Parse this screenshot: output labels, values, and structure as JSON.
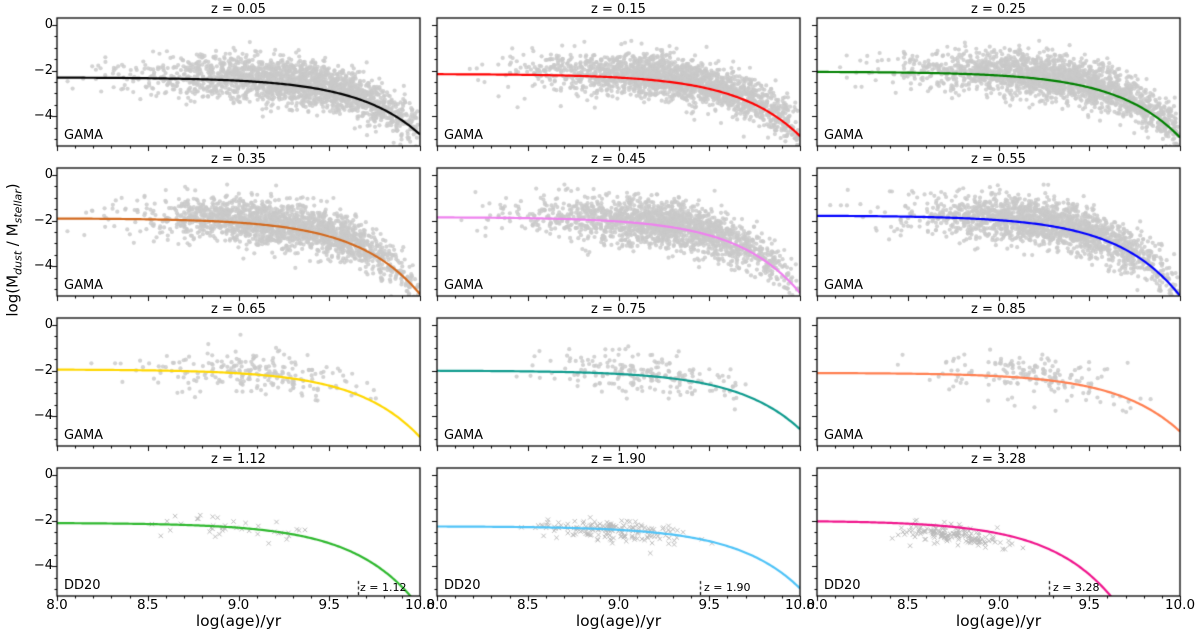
{
  "chart_data": {
    "type": "scatter",
    "description": "4x3 grid of panels: dust-to-stellar mass ratio vs stellar age, grey galaxy scatter with colored best-fit curves per redshift bin",
    "figure": {
      "ylabel_parts": {
        "p1": "log(M",
        "sub1": "dust",
        "p2": " / M",
        "sub2": "stellar",
        "p3": ")"
      },
      "xlabel": "log(age)/yr",
      "xticks": [
        "8.0",
        "8.5",
        "9.0",
        "9.5",
        "10.0"
      ],
      "xtick_values": [
        8.0,
        8.5,
        9.0,
        9.5,
        10.0
      ],
      "yticks": [
        "0",
        "−2",
        "−4"
      ],
      "ytick_values": [
        0,
        -2,
        -4
      ],
      "xlim": [
        8.0,
        10.0
      ],
      "ylim": [
        0.3,
        -5.3
      ],
      "grid": false,
      "legend": "none",
      "scatter_color": "#c9c9c9",
      "axis_color": "#000000"
    },
    "panels": [
      {
        "title": "z = 0.05",
        "label": "GAMA",
        "color": "#000000",
        "curve": {
          "model": "plateau - exp((x-knee)/scale)",
          "plateau": -2.3,
          "knee": 9.68,
          "scale": 0.35
        },
        "scatter": {
          "n": 2000,
          "marker": "circle",
          "x_mean": 9.35,
          "x_sd": 0.42,
          "x_min": 8.02,
          "x_max": 9.99,
          "y_sd": 0.48,
          "y_offset": 0.15,
          "seed": 101
        }
      },
      {
        "title": "z = 0.15",
        "label": "GAMA",
        "color": "#ff0000",
        "curve": {
          "model": "plateau - exp((x-knee)/scale)",
          "plateau": -2.15,
          "knee": 9.65,
          "scale": 0.35
        },
        "scatter": {
          "n": 2000,
          "marker": "circle",
          "x_mean": 9.35,
          "x_sd": 0.4,
          "x_min": 8.02,
          "x_max": 9.99,
          "y_sd": 0.48,
          "y_offset": 0.15,
          "seed": 102
        }
      },
      {
        "title": "z = 0.25",
        "label": "GAMA",
        "color": "#008000",
        "curve": {
          "model": "plateau - exp((x-knee)/scale)",
          "plateau": -2.05,
          "knee": 9.63,
          "scale": 0.35
        },
        "scatter": {
          "n": 2000,
          "marker": "circle",
          "x_mean": 9.38,
          "x_sd": 0.4,
          "x_min": 8.02,
          "x_max": 9.99,
          "y_sd": 0.48,
          "y_offset": 0.15,
          "seed": 103
        }
      },
      {
        "title": "z = 0.35",
        "label": "GAMA",
        "color": "#d2691e",
        "curve": {
          "model": "plateau - exp((x-knee)/scale)",
          "plateau": -1.9,
          "knee": 9.58,
          "scale": 0.35
        },
        "scatter": {
          "n": 1800,
          "marker": "circle",
          "x_mean": 9.3,
          "x_sd": 0.38,
          "x_min": 8.02,
          "x_max": 9.99,
          "y_sd": 0.5,
          "y_offset": 0.1,
          "seed": 104
        }
      },
      {
        "title": "z = 0.45",
        "label": "GAMA",
        "color": "#ee82ee",
        "curve": {
          "model": "plateau - exp((x-knee)/scale)",
          "plateau": -1.85,
          "knee": 9.58,
          "scale": 0.35
        },
        "scatter": {
          "n": 1800,
          "marker": "circle",
          "x_mean": 9.3,
          "x_sd": 0.38,
          "x_min": 8.02,
          "x_max": 9.99,
          "y_sd": 0.5,
          "y_offset": 0.1,
          "seed": 105
        }
      },
      {
        "title": "z = 0.55",
        "label": "GAMA",
        "color": "#0000ff",
        "curve": {
          "model": "plateau - exp((x-knee)/scale)",
          "plateau": -1.78,
          "knee": 9.56,
          "scale": 0.35
        },
        "scatter": {
          "n": 1800,
          "marker": "circle",
          "x_mean": 9.32,
          "x_sd": 0.36,
          "x_min": 8.02,
          "x_max": 9.99,
          "y_sd": 0.5,
          "y_offset": 0.1,
          "seed": 106
        }
      },
      {
        "title": "z = 0.65",
        "label": "GAMA",
        "color": "#ffd700",
        "curve": {
          "model": "plateau - exp((x-knee)/scale)",
          "plateau": -1.95,
          "knee": 9.62,
          "scale": 0.35
        },
        "scatter": {
          "n": 230,
          "marker": "circle",
          "x_mean": 9.12,
          "x_sd": 0.33,
          "x_min": 8.05,
          "x_max": 9.8,
          "y_sd": 0.45,
          "y_offset": 0.15,
          "seed": 107
        }
      },
      {
        "title": "z = 0.75",
        "label": "GAMA",
        "color": "#0f9b8e",
        "curve": {
          "model": "plateau - exp((x-knee)/scale)",
          "plateau": -2.0,
          "knee": 9.67,
          "scale": 0.35
        },
        "scatter": {
          "n": 200,
          "marker": "circle",
          "x_mean": 9.15,
          "x_sd": 0.3,
          "x_min": 8.1,
          "x_max": 9.8,
          "y_sd": 0.42,
          "y_offset": 0.12,
          "seed": 108
        }
      },
      {
        "title": "z = 0.85",
        "label": "GAMA",
        "color": "#ff7f50",
        "curve": {
          "model": "plateau - exp((x-knee)/scale)",
          "plateau": -2.1,
          "knee": 9.67,
          "scale": 0.35
        },
        "scatter": {
          "n": 170,
          "marker": "circle",
          "x_mean": 9.2,
          "x_sd": 0.3,
          "x_min": 8.2,
          "x_max": 9.85,
          "y_sd": 0.45,
          "y_offset": 0.2,
          "seed": 109
        }
      },
      {
        "title": "z = 1.12",
        "label": "DD20",
        "color": "#2eb82e",
        "curve": {
          "model": "plateau - exp((x-knee)/scale)",
          "plateau": -2.1,
          "knee": 9.54,
          "scale": 0.35
        },
        "scatter": {
          "n": 40,
          "marker": "x",
          "x_mean": 8.95,
          "x_sd": 0.28,
          "x_min": 8.5,
          "x_max": 9.42,
          "y_sd": 0.26,
          "y_offset": -0.05,
          "seed": 110
        },
        "vline": {
          "x": 9.66,
          "label": "z = 1.12"
        }
      },
      {
        "title": "z = 1.90",
        "label": "DD20",
        "color": "#4fc3f7",
        "curve": {
          "model": "plateau - exp((x-knee)/scale)",
          "plateau": -2.25,
          "knee": 9.65,
          "scale": 0.35
        },
        "scatter": {
          "n": 170,
          "marker": "x",
          "x_mean": 8.95,
          "x_sd": 0.22,
          "x_min": 8.45,
          "x_max": 9.65,
          "y_sd": 0.22,
          "y_offset": 0.0,
          "seed": 111
        },
        "vline": {
          "x": 9.45,
          "label": "z = 1.90"
        }
      },
      {
        "title": "z = 3.28",
        "label": "DD20",
        "color": "#f0148c",
        "curve": {
          "model": "plateau - exp((x-knee)/scale)",
          "plateau": -2.0,
          "knee": 9.2,
          "scale": 0.35
        },
        "scatter": {
          "n": 150,
          "marker": "x",
          "x_mean": 8.72,
          "x_sd": 0.17,
          "x_min": 8.4,
          "x_max": 9.15,
          "y_sd": 0.22,
          "y_offset": -0.3,
          "seed": 112
        },
        "vline": {
          "x": 9.28,
          "label": "z = 3.28"
        }
      }
    ]
  }
}
